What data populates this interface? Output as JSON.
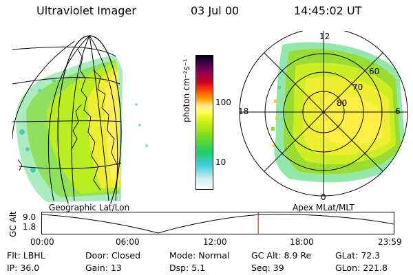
{
  "header": {
    "title": "Ultraviolet Imager",
    "date": "03 Jul 00",
    "time": "14:45:02 UT"
  },
  "left_panel": {
    "caption": "Geographic Lat/Lon"
  },
  "right_panel": {
    "caption": "Apex MLat/MLT",
    "mlt_labels": {
      "top": "12",
      "left": "18",
      "right": "6",
      "bottom": "0"
    },
    "mlat_labels": [
      "60",
      "70",
      "80"
    ]
  },
  "colorbar": {
    "label": "photon cm⁻²s⁻¹",
    "ticks": [
      "100",
      "10"
    ],
    "scale": "log",
    "colors": [
      "#ffffff",
      "#8ce8e8",
      "#33cccc",
      "#22cc66",
      "#77dd22",
      "#bbee11",
      "#ffff44",
      "#ffe066",
      "#ff9900",
      "#ff4400",
      "#cc0022",
      "#880055",
      "#440044",
      "#000022"
    ]
  },
  "altitude_plot": {
    "ylabel": "GC Alt",
    "yticks": [
      "9.0",
      "1.8"
    ],
    "ylim": [
      1.8,
      9.0
    ],
    "xticks": [
      "00:00",
      "06:00",
      "12:00",
      "18:00",
      "23:59"
    ],
    "current_time_hours": 14.75
  },
  "info": {
    "row1": [
      {
        "label": "Flt:",
        "value": "LBHL"
      },
      {
        "label": "Door:",
        "value": "Closed"
      },
      {
        "label": "Mode:",
        "value": "Normal"
      },
      {
        "label": "GC Alt:",
        "value": "8.9 Re"
      },
      {
        "label": "GLat:",
        "value": "72.3"
      }
    ],
    "row2": [
      {
        "label": "IP:",
        "value": "36.0"
      },
      {
        "label": "Gain:",
        "value": "13"
      },
      {
        "label": "Dsp:",
        "value": "5.1"
      },
      {
        "label": "Seq:",
        "value": "39"
      },
      {
        "label": "GLon:",
        "value": "221.8"
      }
    ]
  }
}
